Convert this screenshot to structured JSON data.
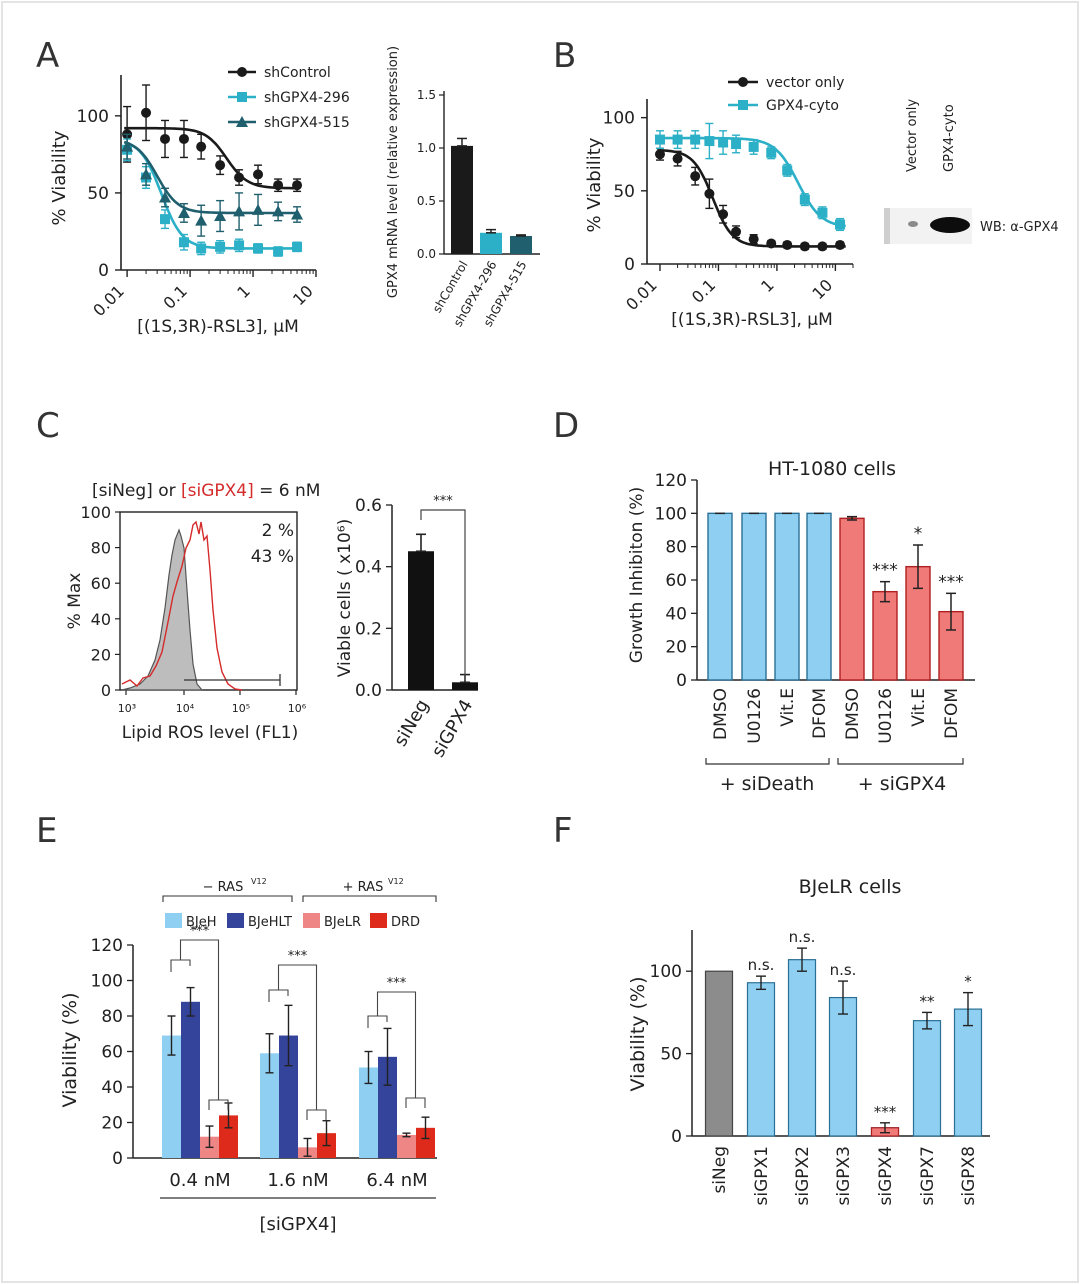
{
  "panels": {
    "A": {
      "letter": "A",
      "dose": {
        "ylabel": "% Viability",
        "xlabel": "[(1S,3R)-RSL3], µM",
        "yticks": [
          "0",
          "50",
          "100"
        ],
        "xticks": [
          "0.01",
          "0.1",
          "1",
          "10"
        ],
        "legend": [
          "shControl",
          "shGPX4-296",
          "shGPX4-515"
        ]
      },
      "bar": {
        "ylabel": "GPX4 mRNA level (relative expression)",
        "yticks": [
          "0.0",
          "0.5",
          "1.0",
          "1.5"
        ],
        "categories": [
          "shControl",
          "shGPX4-296",
          "shGPX4-515"
        ]
      }
    },
    "B": {
      "letter": "B",
      "ylabel": "% Viability",
      "xlabel": "[(1S,3R)-RSL3], µM",
      "yticks": [
        "0",
        "50",
        "100"
      ],
      "xticks": [
        "0.01",
        "0.1",
        "1",
        "10"
      ],
      "legend": [
        "vector only",
        "GPX4-cyto"
      ],
      "blot": {
        "lanes": [
          "Vector only",
          "GPX4-cyto"
        ],
        "label": "WB: α-GPX4"
      }
    },
    "C": {
      "letter": "C",
      "hist": {
        "title_part1": "[siNeg] or ",
        "title_part2": "[siGPX4]",
        "title_part3": " = 6 nM",
        "pct_neg": "2 %",
        "pct_gpx4": "43 %",
        "ylabel": "% Max",
        "xlabel": "Lipid ROS level (FL1)",
        "yticks": [
          "0",
          "20",
          "40",
          "60",
          "80",
          "100"
        ],
        "xticks": [
          "10³",
          "10⁴",
          "10⁵",
          "10⁶"
        ]
      },
      "bar": {
        "ylabel": "Viable cells ( x10⁶)",
        "yticks": [
          "0.0",
          "0.2",
          "0.4",
          "0.6"
        ],
        "categories": [
          "siNeg",
          "siGPX4"
        ],
        "sig": "***"
      }
    },
    "D": {
      "letter": "D",
      "title": "HT-1080 cells",
      "ylabel": "Growth Inhibiton (%)",
      "yticks": [
        "0",
        "20",
        "40",
        "60",
        "80",
        "100",
        "120"
      ],
      "categories": [
        "DMSO",
        "U0126",
        "Vit.E",
        "DFOM",
        "DMSO",
        "U0126",
        "Vit.E",
        "DFOM"
      ],
      "sig": [
        "",
        "",
        "",
        "",
        "",
        "***",
        "*",
        "***"
      ],
      "groups": [
        "+ siDeath",
        "+ siGPX4"
      ]
    },
    "E": {
      "letter": "E",
      "ylabel": "Viability (%)",
      "yticks": [
        "0",
        "20",
        "40",
        "60",
        "80",
        "100",
        "120"
      ],
      "groups": [
        "0.4 nM",
        "1.6 nM",
        "6.4 nM"
      ],
      "xlabel": "[siGPX4]",
      "ras_minus": "− RAS",
      "ras_plus": "+ RAS",
      "ras_sup": "V12",
      "legend": [
        "BJeH",
        "BJeHLT",
        "BJeLR",
        "DRD"
      ],
      "sig": "***"
    },
    "F": {
      "letter": "F",
      "title": "BJeLR cells",
      "ylabel": "Viability (%)",
      "yticks": [
        "0",
        "50",
        "100"
      ],
      "categories": [
        "siNeg",
        "siGPX1",
        "siGPX2",
        "siGPX3",
        "siGPX4",
        "siGPX7",
        "siGPX8"
      ],
      "sig": [
        "",
        "n.s.",
        "n.s.",
        "n.s.",
        "***",
        "**",
        "*"
      ]
    }
  },
  "colors": {
    "black": "#1a1a1a",
    "teal": "#2bb0c7",
    "darkteal": "#1f5f6e",
    "lightblue": "#8fd0f2",
    "navy": "#34449a",
    "pink": "#ee8686",
    "red": "#dd2a1b",
    "salmon": "#ef7a78",
    "gray": "#8c8c8c",
    "histred": "#d52b2b"
  },
  "chart_data": [
    {
      "type": "scatter",
      "panel": "A-left",
      "xlabel": "[(1S,3R)-RSL3], µM",
      "ylabel": "% Viability",
      "xscale": "log",
      "xlim": [
        0.008,
        10
      ],
      "ylim": [
        0,
        120
      ],
      "series": [
        {
          "name": "shControl",
          "x": [
            0.01,
            0.02,
            0.04,
            0.08,
            0.15,
            0.3,
            0.6,
            1.2,
            2.5,
            5
          ],
          "y": [
            88,
            102,
            85,
            85,
            80,
            68,
            60,
            62,
            55,
            55
          ],
          "err": [
            18,
            18,
            12,
            12,
            8,
            6,
            5,
            6,
            4,
            4
          ]
        },
        {
          "name": "shGPX4-296",
          "x": [
            0.01,
            0.02,
            0.04,
            0.08,
            0.15,
            0.3,
            0.6,
            1.2,
            2.5,
            5
          ],
          "y": [
            78,
            60,
            33,
            18,
            14,
            15,
            16,
            14,
            12,
            15
          ],
          "err": [
            7,
            7,
            6,
            5,
            4,
            4,
            4,
            3,
            3,
            3
          ]
        },
        {
          "name": "shGPX4-515",
          "x": [
            0.01,
            0.02,
            0.04,
            0.08,
            0.15,
            0.3,
            0.6,
            1.2,
            2.5,
            5
          ],
          "y": [
            80,
            62,
            47,
            37,
            32,
            35,
            38,
            39,
            38,
            36
          ],
          "err": [
            8,
            7,
            6,
            6,
            10,
            10,
            12,
            10,
            6,
            5
          ]
        }
      ]
    },
    {
      "type": "bar",
      "panel": "A-right",
      "ylabel": "GPX4 mRNA level (relative expression)",
      "ylim": [
        0,
        1.5
      ],
      "categories": [
        "shControl",
        "shGPX4-296",
        "shGPX4-515"
      ],
      "values": [
        1.02,
        0.2,
        0.17
      ],
      "err": [
        0.07,
        0.03,
        0.01
      ]
    },
    {
      "type": "scatter",
      "panel": "B",
      "xlabel": "[(1S,3R)-RSL3], µM",
      "ylabel": "% Viability",
      "xscale": "log",
      "xlim": [
        0.006,
        20
      ],
      "ylim": [
        0,
        110
      ],
      "series": [
        {
          "name": "vector only",
          "x": [
            0.01,
            0.02,
            0.04,
            0.07,
            0.12,
            0.2,
            0.4,
            0.8,
            1.5,
            3,
            6,
            12
          ],
          "y": [
            75,
            72,
            60,
            48,
            34,
            22,
            17,
            14,
            13,
            12,
            12,
            13
          ],
          "err": [
            4,
            5,
            6,
            10,
            6,
            4,
            3,
            2,
            2,
            2,
            2,
            2
          ]
        },
        {
          "name": "GPX4-cyto",
          "x": [
            0.01,
            0.02,
            0.04,
            0.07,
            0.12,
            0.2,
            0.4,
            0.8,
            1.5,
            3,
            6,
            12
          ],
          "y": [
            85,
            85,
            85,
            84,
            83,
            82,
            80,
            76,
            64,
            44,
            35,
            27
          ],
          "err": [
            6,
            6,
            6,
            12,
            8,
            6,
            5,
            4,
            4,
            4,
            4,
            4
          ]
        }
      ]
    },
    {
      "type": "area",
      "panel": "C-left",
      "xlabel": "Lipid ROS level (FL1)",
      "ylabel": "% Max",
      "xscale": "log",
      "series": [
        {
          "name": "siNeg",
          "value": "2 %"
        },
        {
          "name": "siGPX4",
          "value": "43 %"
        }
      ]
    },
    {
      "type": "bar",
      "panel": "C-right",
      "ylabel": "Viable cells ( x10⁶)",
      "ylim": [
        0,
        0.6
      ],
      "categories": [
        "siNeg",
        "siGPX4"
      ],
      "values": [
        0.45,
        0.025
      ],
      "err": [
        0.055,
        0.025
      ]
    },
    {
      "type": "bar",
      "panel": "D",
      "title": "HT-1080 cells",
      "ylabel": "Growth Inhibiton (%)",
      "ylim": [
        0,
        120
      ],
      "categories": [
        "DMSO",
        "U0126",
        "Vit.E",
        "DFOM",
        "DMSO",
        "U0126",
        "Vit.E",
        "DFOM"
      ],
      "values": [
        100,
        100,
        100,
        100,
        97,
        53,
        68,
        41
      ],
      "err": [
        0,
        0,
        0,
        0,
        1,
        6,
        13,
        11
      ]
    },
    {
      "type": "bar",
      "panel": "E",
      "xlabel": "[siGPX4]",
      "ylabel": "Viability (%)",
      "ylim": [
        0,
        120
      ],
      "categories": [
        "0.4 nM",
        "1.6 nM",
        "6.4 nM"
      ],
      "series": [
        {
          "name": "BJeH",
          "values": [
            69,
            59,
            51
          ],
          "err": [
            11,
            11,
            9
          ]
        },
        {
          "name": "BJeHLT",
          "values": [
            88,
            69,
            57
          ],
          "err": [
            8,
            17,
            16
          ]
        },
        {
          "name": "BJeLR",
          "values": [
            12,
            6,
            13
          ],
          "err": [
            6,
            5,
            1
          ]
        },
        {
          "name": "DRD",
          "values": [
            24,
            14,
            17
          ],
          "err": [
            7,
            7,
            6
          ]
        }
      ]
    },
    {
      "type": "bar",
      "panel": "F",
      "title": "BJeLR cells",
      "ylabel": "Viability (%)",
      "ylim": [
        0,
        125
      ],
      "categories": [
        "siNeg",
        "siGPX1",
        "siGPX2",
        "siGPX3",
        "siGPX4",
        "siGPX7",
        "siGPX8"
      ],
      "values": [
        100,
        93,
        107,
        84,
        5,
        70,
        77
      ],
      "err": [
        0,
        4,
        7,
        10,
        3,
        5,
        10
      ]
    }
  ]
}
